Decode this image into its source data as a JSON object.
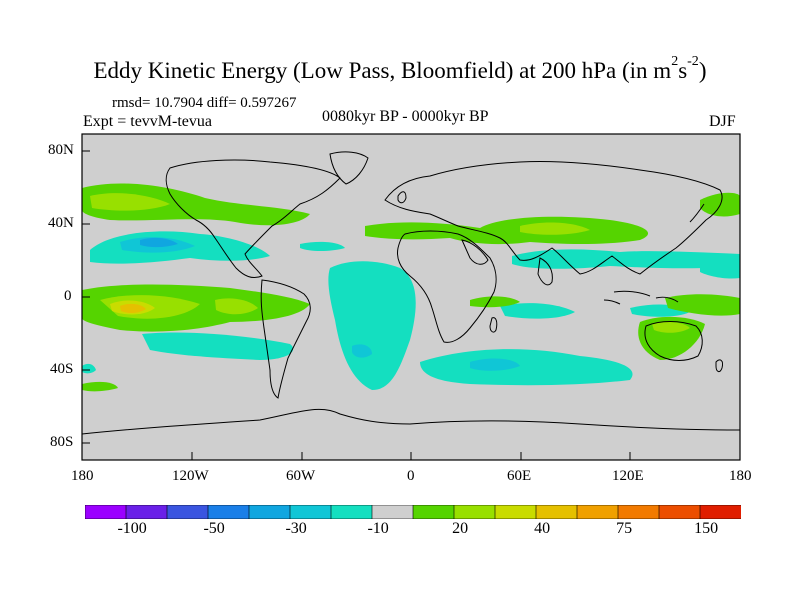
{
  "title": {
    "main": "Eddy Kinetic Energy (Low Pass, Bloomfield) at 200 hPa (in m",
    "unit_exp1": "2",
    "unit_s": "s",
    "unit_exp2": "-2",
    "close": ")"
  },
  "stats": "rmsd= 10.7904 diff= 0.597267",
  "expt": "Expt = tevvM-tevua",
  "period": "0080kyr BP - 0000kyr BP",
  "season": "DJF",
  "lat_ticks": [
    "80N",
    "40N",
    "0",
    "40S",
    "80S"
  ],
  "lon_ticks": [
    "180",
    "120W",
    "60W",
    "0",
    "60E",
    "120E",
    "180"
  ],
  "colorbar": {
    "colors": [
      "#9b00ff",
      "#6a20e8",
      "#3a55e0",
      "#1a7fe8",
      "#10a6e0",
      "#10c6d6",
      "#14dfc0",
      "#cfcfcf",
      "#55d400",
      "#98e000",
      "#c9dc00",
      "#e5c000",
      "#f0a000",
      "#f27a00",
      "#ec4e00",
      "#e01e00"
    ],
    "labels": [
      "-100",
      "-50",
      "-30",
      "-10",
      "20",
      "40",
      "75",
      "150"
    ]
  },
  "colors": {
    "map_background": "#cfcfcf",
    "coastline": "#000000"
  }
}
